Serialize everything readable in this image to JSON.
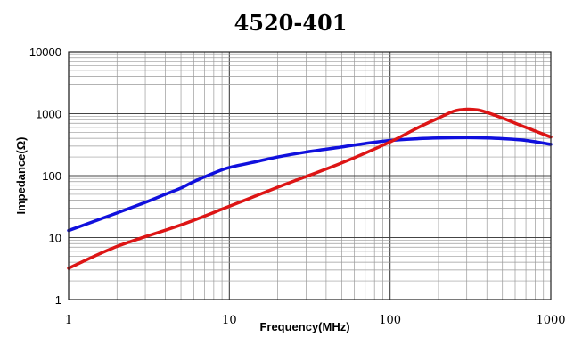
{
  "chart_data": {
    "type": "line",
    "title": "4520-401",
    "xlabel": "Frequency(MHz)",
    "ylabel": "Impedance(Ω)",
    "x_scale": "log",
    "y_scale": "log",
    "xlim": [
      1,
      1000
    ],
    "ylim": [
      1,
      10000
    ],
    "x_ticks": [
      "1",
      "10",
      "100",
      "1000"
    ],
    "y_ticks": [
      "1",
      "10",
      "100",
      "1000",
      "10000"
    ],
    "grid": true,
    "series": [
      {
        "color": "#1010dd",
        "x": [
          1,
          1.5,
          2,
          3,
          4,
          5,
          6,
          8,
          10,
          15,
          20,
          30,
          50,
          70,
          100,
          150,
          200,
          300,
          400,
          500,
          700,
          1000
        ],
        "y": [
          13,
          19,
          25,
          37,
          50,
          63,
          80,
          110,
          135,
          170,
          200,
          240,
          290,
          330,
          370,
          395,
          405,
          410,
          405,
          395,
          370,
          320
        ]
      },
      {
        "color": "#dd1515",
        "x": [
          1,
          2,
          5,
          10,
          20,
          50,
          100,
          150,
          200,
          250,
          300,
          350,
          400,
          500,
          700,
          1000
        ],
        "y": [
          3.2,
          7.2,
          16,
          32,
          65,
          160,
          350,
          600,
          850,
          1100,
          1180,
          1150,
          1050,
          850,
          600,
          420
        ]
      }
    ]
  }
}
